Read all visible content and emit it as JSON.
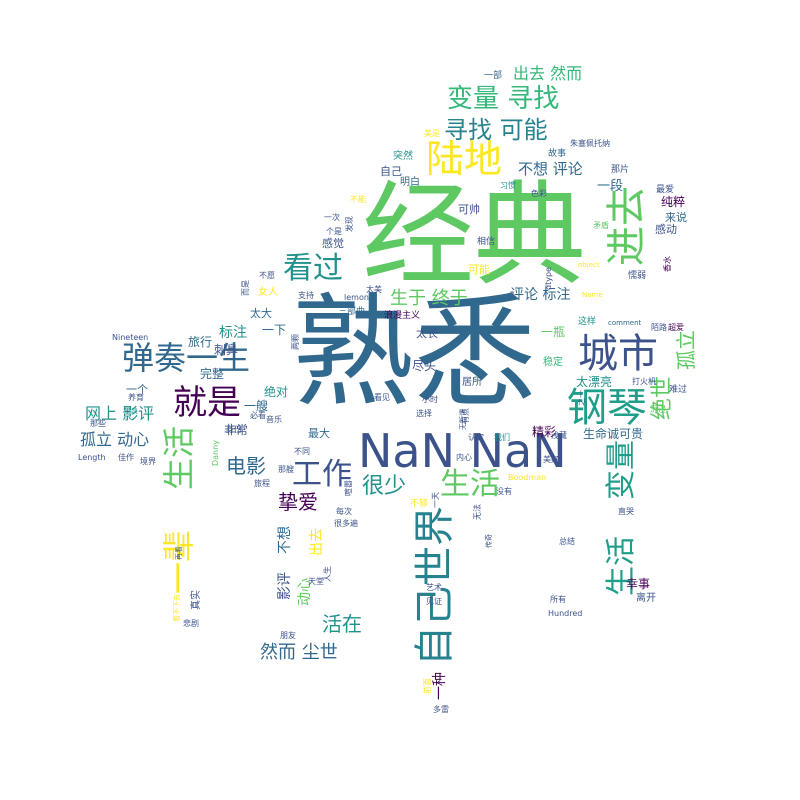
{
  "colors": {
    "background": "#ffffff",
    "palette": [
      "#440154",
      "#3b528b",
      "#21918c",
      "#5ec962",
      "#fde725"
    ]
  },
  "words": [
    {
      "t": "经典"
    },
    {
      "t": "熟悉"
    },
    {
      "t": "NaN NaN"
    },
    {
      "t": "自己世界"
    },
    {
      "t": "城市"
    },
    {
      "t": "钢琴"
    },
    {
      "t": "弹奏一生"
    },
    {
      "t": "进去"
    },
    {
      "t": "陆地"
    },
    {
      "t": "就是"
    },
    {
      "t": "看过"
    },
    {
      "t": "生活"
    },
    {
      "t": "一辈"
    },
    {
      "t": "工作"
    },
    {
      "t": "生活"
    },
    {
      "t": "变量"
    },
    {
      "t": "生活"
    },
    {
      "t": "变量 寻找"
    },
    {
      "t": "寻找 可能"
    },
    {
      "t": "很少"
    },
    {
      "t": "绝世"
    },
    {
      "t": "孤立"
    },
    {
      "t": "电影"
    },
    {
      "t": "挚爱"
    },
    {
      "t": "活在"
    },
    {
      "t": "然而 尘世"
    },
    {
      "t": "生于 终于"
    },
    {
      "t": "出去 然而"
    },
    {
      "t": "孤立 动心"
    },
    {
      "t": "网上 影评"
    },
    {
      "t": "不想 评论"
    },
    {
      "t": "评论 标注"
    },
    {
      "t": "一段"
    },
    {
      "t": "纯粹"
    },
    {
      "t": "感动"
    },
    {
      "t": "来说"
    },
    {
      "t": "可帅"
    },
    {
      "t": "自己"
    },
    {
      "t": "突然"
    },
    {
      "t": "明白"
    },
    {
      "t": "标注"
    },
    {
      "t": "旅行"
    },
    {
      "t": "刺鼻"
    },
    {
      "t": "完整"
    },
    {
      "t": "绝对"
    },
    {
      "t": "一艘"
    },
    {
      "t": "非常"
    },
    {
      "t": "最大"
    },
    {
      "t": "精彩"
    },
    {
      "t": "生命诚可贵"
    },
    {
      "t": "幸事"
    },
    {
      "t": "离开"
    },
    {
      "t": "太漂亮"
    },
    {
      "t": "稳定"
    },
    {
      "t": "尽头"
    },
    {
      "t": "一瓶"
    },
    {
      "t": "居所"
    },
    {
      "t": "一下"
    },
    {
      "t": "太大"
    },
    {
      "t": "太长"
    },
    {
      "t": "三部曲"
    },
    {
      "t": "浪漫主义"
    },
    {
      "t": "影评"
    },
    {
      "t": "动心"
    },
    {
      "t": "出去"
    },
    {
      "t": "不想"
    },
    {
      "t": "感觉"
    },
    {
      "t": "可能"
    },
    {
      "t": "一个"
    },
    {
      "t": "一部"
    },
    {
      "t": "故事"
    },
    {
      "t": "那片"
    },
    {
      "t": "最爱"
    },
    {
      "t": "色彩"
    },
    {
      "t": "习惯"
    },
    {
      "t": "相信"
    },
    {
      "t": "矛盾"
    },
    {
      "t": "懦弱"
    },
    {
      "t": "打火机"
    },
    {
      "t": "难过"
    },
    {
      "t": "超爱"
    },
    {
      "t": "陌路"
    },
    {
      "t": "这样"
    },
    {
      "t": "comment"
    },
    {
      "t": "Name"
    },
    {
      "t": "object"
    },
    {
      "t": "dtype"
    },
    {
      "t": "lemon"
    },
    {
      "t": "太美"
    },
    {
      "t": "支持"
    },
    {
      "t": "女人"
    },
    {
      "t": "不愿"
    },
    {
      "t": "Nineteen"
    },
    {
      "t": "养育"
    },
    {
      "t": "那些"
    },
    {
      "t": "Length"
    },
    {
      "t": "佳作"
    },
    {
      "t": "境界"
    },
    {
      "t": "身份"
    },
    {
      "t": "必看"
    },
    {
      "t": "旅程"
    },
    {
      "t": "那艘"
    },
    {
      "t": "Danny"
    },
    {
      "t": "不同"
    },
    {
      "t": "认定"
    },
    {
      "t": "我们"
    },
    {
      "t": "选择"
    },
    {
      "t": "小时"
    },
    {
      "t": "看见"
    },
    {
      "t": "内心"
    },
    {
      "t": "没有"
    },
    {
      "t": "Boodman"
    },
    {
      "t": "浅藏"
    },
    {
      "t": "美好"
    },
    {
      "t": "不够"
    },
    {
      "t": "每次"
    },
    {
      "t": "很多遍"
    },
    {
      "t": "一种"
    },
    {
      "t": "真实"
    },
    {
      "t": "悲剧"
    },
    {
      "t": "朋友"
    },
    {
      "t": "天堂"
    },
    {
      "t": "人生"
    },
    {
      "t": "艺术"
    },
    {
      "t": "见证"
    },
    {
      "t": "所有"
    },
    {
      "t": "Hundred"
    },
    {
      "t": "总结"
    },
    {
      "t": "直哭"
    },
    {
      "t": "前面"
    },
    {
      "t": "多雷"
    },
    {
      "t": "音乐"
    },
    {
      "t": "平淡"
    },
    {
      "t": "不能"
    },
    {
      "t": "美是"
    },
    {
      "t": "朱塞佩托纳"
    },
    {
      "t": "一次"
    },
    {
      "t": "个是"
    },
    {
      "t": "发现"
    },
    {
      "t": "香水"
    },
    {
      "t": "沉浸"
    },
    {
      "t": "看不下去"
    },
    {
      "t": "而是"
    },
    {
      "t": "无法"
    },
    {
      "t": "一天"
    },
    {
      "t": "之一"
    },
    {
      "t": "两颗"
    },
    {
      "t": "有点"
    },
    {
      "t": "喧嚣"
    },
    {
      "t": "传奇"
    },
    {
      "t": "再看"
    },
    {
      "t": "无所谓"
    }
  ]
}
